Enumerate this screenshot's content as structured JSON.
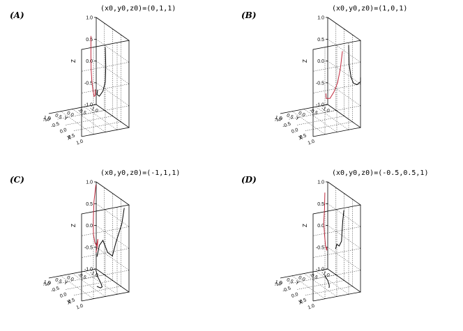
{
  "chart_data": [
    {
      "type": "line",
      "panel": "(A)",
      "title": "(x0,y0,z0)=(0,1,1)",
      "zlabel": "Z",
      "xlabel": "X",
      "ylabel": "Y",
      "z_ticks": [
        "-1.0",
        "-0.5",
        "0.0",
        "0.5",
        "1.0"
      ],
      "x_ticks": [
        "-1.0",
        "-0.5",
        "0.0",
        "0.5",
        "1.0"
      ],
      "y_ticks": [
        "-1.0",
        "-0.5",
        "0.0",
        "0.5",
        "1.0"
      ],
      "zlim": [
        -1,
        1
      ],
      "grid": true,
      "colors": {
        "trajectory": "#c0283c",
        "projection": "#000000"
      },
      "trajectory": [
        [
          0.05,
          0.05,
          0.95
        ],
        [
          0.05,
          0.05,
          0.5
        ],
        [
          0.08,
          0.04,
          0.2
        ],
        [
          0.15,
          0.02,
          -0.05
        ],
        [
          0.25,
          0.0,
          -0.25
        ],
        [
          0.35,
          -0.02,
          -0.35
        ],
        [
          0.45,
          -0.05,
          -0.3
        ],
        [
          0.48,
          -0.06,
          -0.15
        ]
      ],
      "projection_yz": [
        [
          1.0,
          0.95
        ],
        [
          0.98,
          0.5
        ],
        [
          1.0,
          0.15
        ],
        [
          1.1,
          -0.05
        ],
        [
          1.25,
          -0.15
        ],
        [
          1.35,
          -0.1
        ],
        [
          1.32,
          0.0
        ]
      ],
      "projection_xy": []
    },
    {
      "type": "line",
      "panel": "(B)",
      "title": "(x0,y0,z0)=(1,0,1)",
      "zlabel": "Z",
      "xlabel": "X",
      "ylabel": "Y",
      "z_ticks": [
        "-1.0",
        "-0.5",
        "0.0",
        "0.5",
        "1.0"
      ],
      "x_ticks": [
        "-1.0",
        "-0.5",
        "0.0",
        "0.5",
        "1.0"
      ],
      "y_ticks": [
        "-1.0",
        "-0.5",
        "0.0",
        "0.5",
        "1.0"
      ],
      "zlim": [
        -1,
        1
      ],
      "grid": true,
      "colors": {
        "trajectory": "#c0283c",
        "projection": "#000000"
      },
      "trajectory": [
        [
          1.2,
          0.1,
          0.9
        ],
        [
          1.15,
          0.05,
          0.5
        ],
        [
          1.05,
          0.0,
          0.15
        ],
        [
          0.9,
          -0.05,
          -0.1
        ],
        [
          0.7,
          -0.08,
          -0.3
        ],
        [
          0.5,
          -0.1,
          -0.35
        ],
        [
          0.45,
          -0.08,
          -0.25
        ]
      ],
      "projection_yz": [
        [
          0.5,
          0.95
        ],
        [
          0.48,
          0.5
        ],
        [
          0.4,
          0.2
        ],
        [
          0.3,
          0.05
        ],
        [
          0.15,
          0.0
        ],
        [
          0.0,
          0.05
        ],
        [
          -0.1,
          0.15
        ]
      ],
      "projection_xy": []
    },
    {
      "type": "line",
      "panel": "(C)",
      "title": "(x0,y0,z0)=(-1,1,1)",
      "zlabel": "Z",
      "xlabel": "X",
      "ylabel": "Y",
      "z_ticks": [
        "-1.0",
        "-0.5",
        "0.0",
        "0.5",
        "1.0"
      ],
      "x_ticks": [
        "-1.0",
        "-0.5",
        "0.0",
        "0.5",
        "1.0"
      ],
      "y_ticks": [
        "-1.0",
        "-0.5",
        "0.0",
        "0.5",
        "1.0"
      ],
      "zlim": [
        -1,
        1
      ],
      "grid": true,
      "colors": {
        "trajectory": "#c0283c",
        "projection": "#000000"
      },
      "trajectory": [
        [
          -0.95,
          0.95,
          0.95
        ],
        [
          -0.85,
          0.8,
          0.6
        ],
        [
          -0.6,
          0.6,
          0.25
        ],
        [
          -0.3,
          0.4,
          0.05
        ],
        [
          0.0,
          0.25,
          -0.05
        ],
        [
          0.25,
          0.15,
          -0.05
        ],
        [
          0.4,
          0.1,
          0.15
        ],
        [
          0.45,
          0.05,
          0.0
        ],
        [
          0.4,
          0.02,
          -0.15
        ]
      ],
      "projection_yz": [
        [
          0.2,
          0.95
        ],
        [
          0.3,
          0.6
        ],
        [
          0.55,
          0.2
        ],
        [
          0.7,
          -0.1
        ],
        [
          0.9,
          0.0
        ],
        [
          1.1,
          0.3
        ],
        [
          1.25,
          0.2
        ],
        [
          1.35,
          -0.05
        ]
      ],
      "projection_xy": [
        [
          -0.95,
          0.95
        ],
        [
          -0.5,
          0.7
        ],
        [
          0.0,
          0.5
        ],
        [
          0.3,
          0.35
        ],
        [
          0.35,
          0.25
        ],
        [
          0.2,
          0.2
        ]
      ]
    },
    {
      "type": "line",
      "panel": "(D)",
      "title": "(x0,y0,z0)=(-0.5,0.5,1)",
      "zlabel": "Z",
      "xlabel": "X",
      "ylabel": "Y",
      "z_ticks": [
        "-1.0",
        "-0.5",
        "0.0",
        "0.5",
        "1.0"
      ],
      "x_ticks": [
        "-1.0",
        "-0.5",
        "0.0",
        "0.5",
        "1.0"
      ],
      "y_ticks": [
        "-1.0",
        "-0.5",
        "0.0",
        "0.5",
        "1.0"
      ],
      "zlim": [
        -1,
        1
      ],
      "grid": true,
      "colors": {
        "trajectory": "#c0283c",
        "projection": "#000000"
      },
      "trajectory": [
        [
          -0.45,
          0.5,
          0.95
        ],
        [
          -0.4,
          0.45,
          0.6
        ],
        [
          -0.3,
          0.35,
          0.3
        ],
        [
          -0.1,
          0.25,
          0.05
        ],
        [
          0.1,
          0.15,
          -0.1
        ],
        [
          0.25,
          0.1,
          -0.15
        ],
        [
          0.3,
          0.05,
          -0.05
        ]
      ],
      "projection_yz": [
        [
          0.7,
          0.95
        ],
        [
          0.75,
          0.7
        ],
        [
          0.78,
          0.45
        ],
        [
          0.8,
          0.25
        ],
        [
          0.9,
          0.15
        ],
        [
          1.0,
          0.2
        ],
        [
          1.05,
          0.1
        ]
      ],
      "projection_xy": [
        [
          -0.6,
          0.6
        ],
        [
          -0.2,
          0.45
        ],
        [
          0.1,
          0.3
        ],
        [
          0.25,
          0.2
        ],
        [
          0.3,
          0.15
        ]
      ]
    }
  ]
}
